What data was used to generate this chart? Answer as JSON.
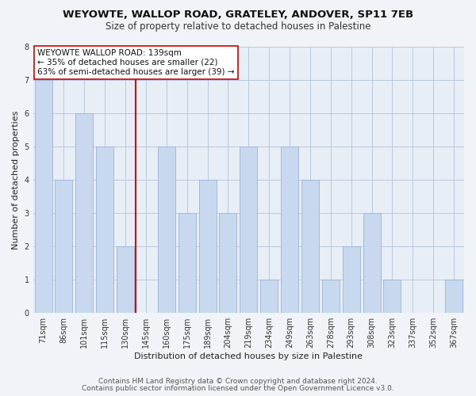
{
  "title": "WEYOWTE, WALLOP ROAD, GRATELEY, ANDOVER, SP11 7EB",
  "subtitle": "Size of property relative to detached houses in Palestine",
  "xlabel": "Distribution of detached houses by size in Palestine",
  "ylabel": "Number of detached properties",
  "categories": [
    "71sqm",
    "86sqm",
    "101sqm",
    "115sqm",
    "130sqm",
    "145sqm",
    "160sqm",
    "175sqm",
    "189sqm",
    "204sqm",
    "219sqm",
    "234sqm",
    "249sqm",
    "263sqm",
    "278sqm",
    "293sqm",
    "308sqm",
    "323sqm",
    "337sqm",
    "352sqm",
    "367sqm"
  ],
  "values": [
    7,
    4,
    6,
    5,
    2,
    0,
    5,
    3,
    4,
    3,
    5,
    1,
    5,
    4,
    1,
    2,
    3,
    1,
    0,
    0,
    1
  ],
  "bar_color": "#c8d8ee",
  "bar_edge_color": "#9ab4d8",
  "bar_width": 0.85,
  "ylim": [
    0,
    8
  ],
  "yticks": [
    0,
    1,
    2,
    3,
    4,
    5,
    6,
    7,
    8
  ],
  "property_line_x": 4.5,
  "property_line_color": "#cc0000",
  "annotation_title": "WEYOWTE WALLOP ROAD: 139sqm",
  "annotation_line1": "← 35% of detached houses are smaller (22)",
  "annotation_line2": "63% of semi-detached houses are larger (39) →",
  "annotation_box_facecolor": "#ffffff",
  "annotation_box_edgecolor": "#cc0000",
  "footer1": "Contains HM Land Registry data © Crown copyright and database right 2024.",
  "footer2": "Contains public sector information licensed under the Open Government Licence v3.0.",
  "background_color": "#f0f4f8",
  "plot_background_color": "#e8eef6",
  "grid_color": "#b8c8dc",
  "title_fontsize": 9.5,
  "subtitle_fontsize": 8.5,
  "axis_label_fontsize": 8,
  "tick_fontsize": 7,
  "footer_fontsize": 6.5,
  "annotation_fontsize": 7.5
}
